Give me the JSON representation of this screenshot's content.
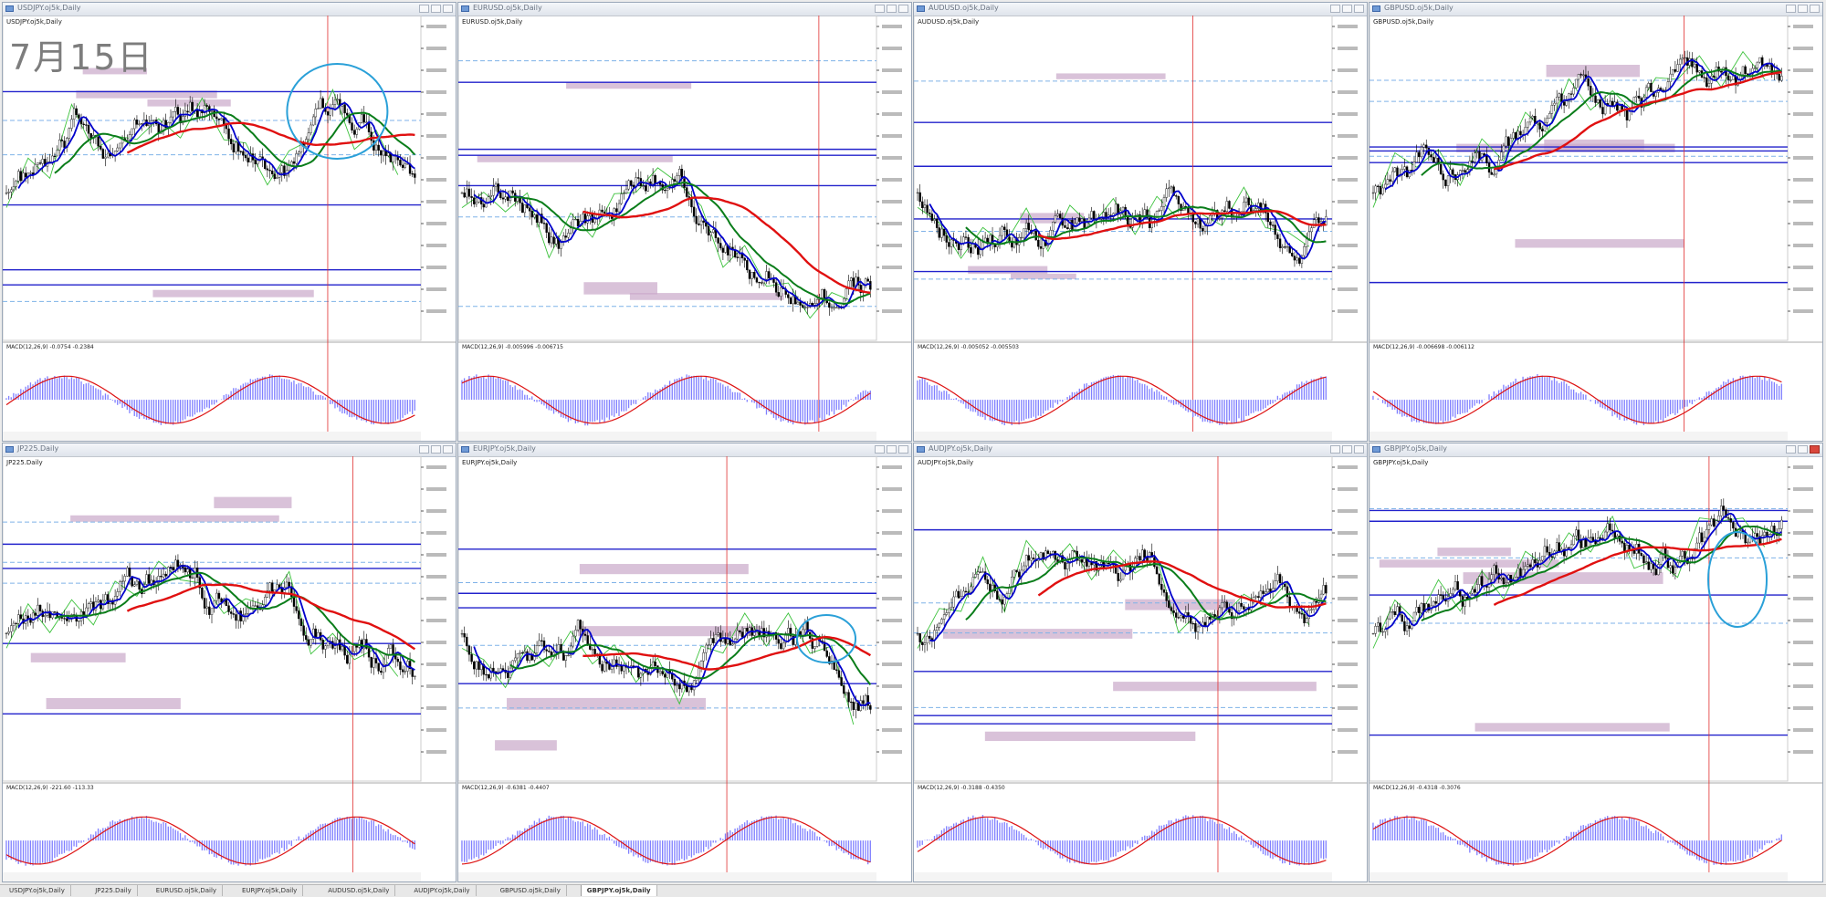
{
  "date_title": "7月15日",
  "panels": [
    {
      "window_title": "USDJPY.oj5k,Daily",
      "symbol_label": "USDJPY.oj5k,Daily",
      "macd_label": "MACD(12,26,9) -0.0754 -0.2384",
      "active": false
    },
    {
      "window_title": "EURUSD.oj5k,Daily",
      "symbol_label": "EURUSD.oj5k,Daily",
      "macd_label": "MACD(12,26,9) -0.005996 -0.006715",
      "active": false
    },
    {
      "window_title": "AUDUSD.oj5k,Daily",
      "symbol_label": "AUDUSD.oj5k,Daily",
      "macd_label": "MACD(12,26,9) -0.005052 -0.005503",
      "active": false
    },
    {
      "window_title": "GBPUSD.oj5k,Daily",
      "symbol_label": "GBPUSD.oj5k,Daily",
      "macd_label": "MACD(12,26,9) -0.006698 -0.006112",
      "active": false
    },
    {
      "window_title": "JP225.Daily",
      "symbol_label": "JP225.Daily",
      "macd_label": "MACD(12,26,9) -221.60 -113.33",
      "active": false
    },
    {
      "window_title": "EURJPY.oj5k,Daily",
      "symbol_label": "EURJPY.oj5k,Daily",
      "macd_label": "MACD(12,26,9) -0.6381 -0.4407",
      "active": false
    },
    {
      "window_title": "AUDJPY.oj5k,Daily",
      "symbol_label": "AUDJPY.oj5k,Daily",
      "macd_label": "MACD(12,26,9) -0.3188 -0.4350",
      "active": false
    },
    {
      "window_title": "GBPJPY.oj5k,Daily",
      "symbol_label": "GBPJPY.oj5k,Daily",
      "macd_label": "MACD(12,26,9) -0.4318 -0.3076",
      "active": true
    }
  ],
  "tabs": [
    "USDJPY.oj5k,Daily",
    "JP225.Daily",
    "EURUSD.oj5k,Daily",
    "EURJPY.oj5k,Daily",
    "AUDUSD.oj5k,Daily",
    "AUDJPY.oj5k,Daily",
    "GBPUSD.oj5k,Daily",
    "GBPJPY.oj5k,Daily"
  ],
  "active_tab": "GBPJPY.oj5k,Daily",
  "colors": {
    "candle_bull": "#ffffff",
    "candle_bear": "#000000",
    "ma_fast": "#0000cc",
    "ma_mid": "#0a7d1a",
    "ma_slow": "#e01010",
    "zigzag": "#3cc23c",
    "level_line": "#2222cc",
    "dashed_level": "#7fb2e8",
    "zone": "#c9a8c9",
    "macd_hist": "#8080ff",
    "macd_signal": "#dd1111",
    "highlight_circle": "#2aa0d8",
    "vline": "#e03030"
  }
}
